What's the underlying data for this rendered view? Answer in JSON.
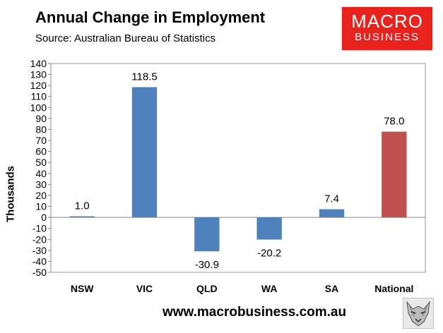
{
  "header": {
    "title": "Annual Change in Employment",
    "source": "Source: Australian Bureau of Statistics"
  },
  "logo": {
    "line1": "MACRO",
    "line2": "BUSINESS"
  },
  "footer": {
    "url": "www.macrobusiness.com.au"
  },
  "colors": {
    "bar": "#4f81bd",
    "highlight": "#c0504d",
    "logo": "#e8231d"
  },
  "chart_data": {
    "type": "bar",
    "ylabel": "Thousands",
    "categories": [
      "NSW",
      "VIC",
      "QLD",
      "WA",
      "SA",
      "National"
    ],
    "values": [
      1.0,
      118.5,
      -30.9,
      -20.2,
      7.4,
      78.0
    ],
    "data_labels": [
      "1.0",
      "118.5",
      "-30.9",
      "-20.2",
      "7.4",
      "78.0"
    ],
    "highlight": [
      "National"
    ],
    "ylim": [
      -50,
      140
    ],
    "ytick_step": 10,
    "grid": false,
    "legend": "none"
  },
  "icons": {
    "mascot": "wolf-icon"
  }
}
